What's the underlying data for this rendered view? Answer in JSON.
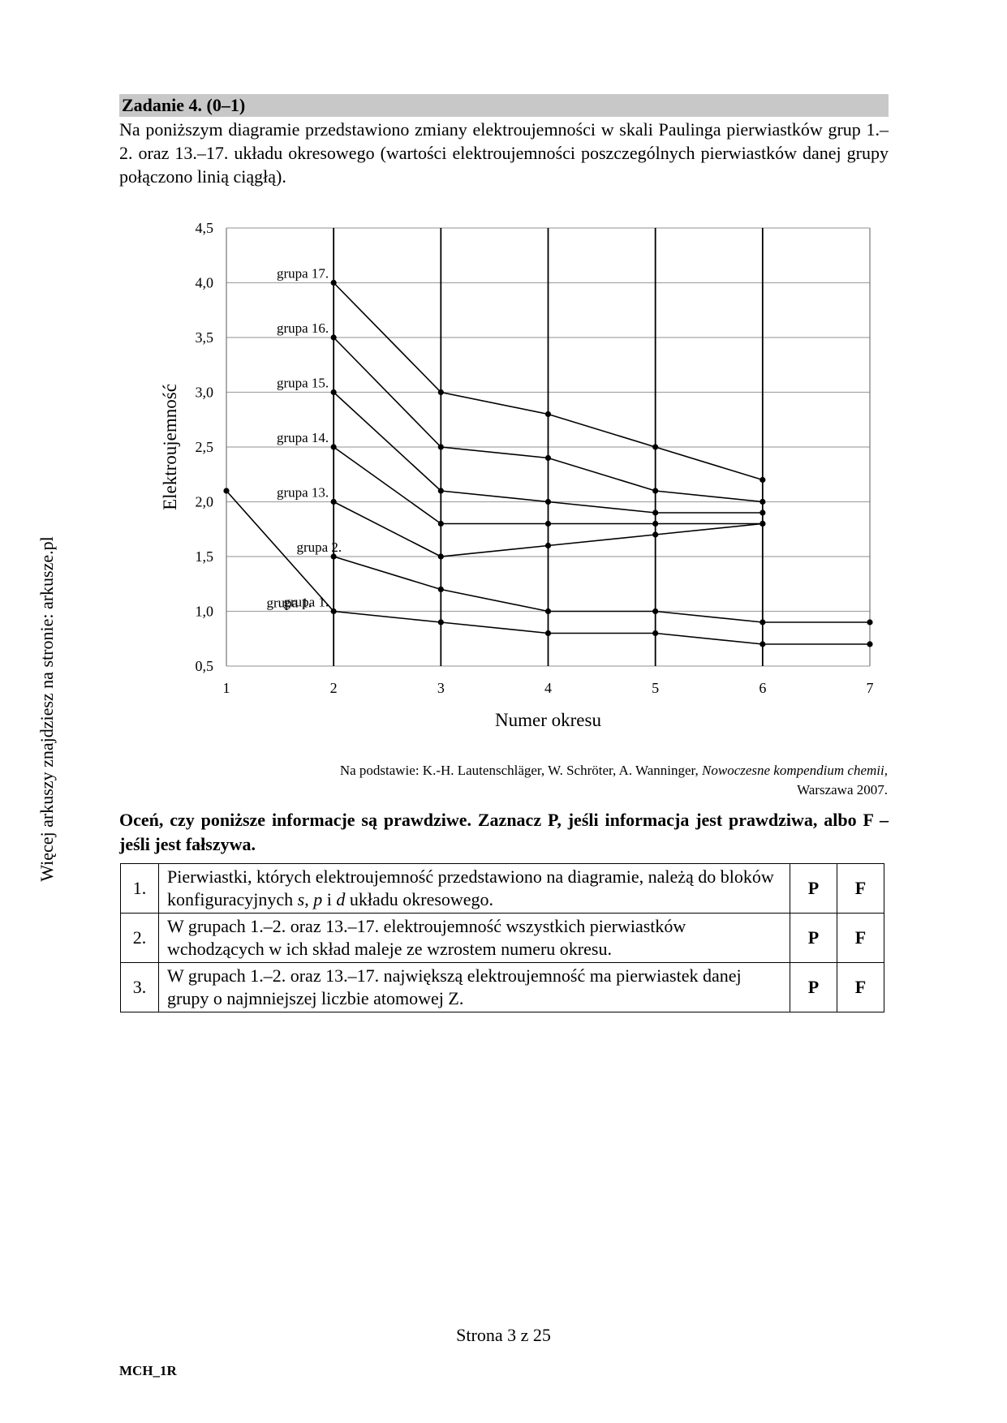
{
  "side_text": "Więcej arkuszy znajdziesz na stronie: arkusze.pl",
  "task": {
    "title": "Zadanie 4. (0–1)",
    "intro": "Na poniższym diagramie przedstawiono zmiany elektroujemności w skali Paulinga pierwiastków grup 1.–2. oraz 13.–17. układu okresowego (wartości elektroujemności poszczególnych pierwiastków danej grupy połączono linią ciągłą)."
  },
  "chart_data": {
    "type": "line",
    "xlabel": "Numer okresu",
    "ylabel": "Elektroujemność",
    "xlim": [
      1,
      7
    ],
    "ylim": [
      0.5,
      4.5
    ],
    "x_ticks": [
      "1",
      "2",
      "3",
      "4",
      "5",
      "6",
      "7"
    ],
    "y_ticks": [
      "0,5",
      "1,0",
      "1,5",
      "2,0",
      "2,5",
      "3,0",
      "3,5",
      "4,0",
      "4,5"
    ],
    "grid": "horizontal lines and vertical lines at periods 2–7",
    "series": [
      {
        "name": "grupa 1.",
        "x": [
          1,
          2,
          3,
          4,
          5,
          6,
          7
        ],
        "y": [
          2.1,
          1.0,
          0.9,
          0.8,
          0.8,
          0.7,
          0.7
        ]
      },
      {
        "name": "grupa 2.",
        "x": [
          2,
          3,
          4,
          5,
          6,
          7
        ],
        "y": [
          1.5,
          1.2,
          1.0,
          1.0,
          0.9,
          0.9
        ]
      },
      {
        "name": "grupa 13.",
        "x": [
          2,
          3,
          4,
          5,
          6
        ],
        "y": [
          2.0,
          1.5,
          1.6,
          1.7,
          1.8
        ]
      },
      {
        "name": "grupa 14.",
        "x": [
          2,
          3,
          4,
          5,
          6
        ],
        "y": [
          2.5,
          1.8,
          1.8,
          1.8,
          1.8
        ]
      },
      {
        "name": "grupa 15.",
        "x": [
          2,
          3,
          4,
          5,
          6
        ],
        "y": [
          3.0,
          2.1,
          2.0,
          1.9,
          1.9
        ]
      },
      {
        "name": "grupa 16.",
        "x": [
          2,
          3,
          4,
          5,
          6
        ],
        "y": [
          3.5,
          2.5,
          2.4,
          2.1,
          2.0
        ]
      },
      {
        "name": "grupa 17.",
        "x": [
          2,
          3,
          4,
          5,
          6
        ],
        "y": [
          4.0,
          3.0,
          2.8,
          2.5,
          2.2
        ]
      }
    ]
  },
  "source": {
    "prefix": "Na podstawie: K.-H. Lautenschläger, W. Schröter, A. Wanninger, ",
    "title": "Nowoczesne kompendium chemii,",
    "place": "Warszawa 2007."
  },
  "question": "Oceń, czy poniższe informacje są prawdziwe. Zaznacz P, jeśli informacja jest prawdziwa, albo F – jeśli jest fałszywa.",
  "statements": [
    {
      "num": "1.",
      "p": "P",
      "f": "F",
      "parts": {
        "a": "Pierwiastki, których elektroujemność przedstawiono na diagramie, należą do bloków konfiguracyjnych ",
        "s": "s",
        "c1": ", ",
        "p_block": "p",
        "c2": " i ",
        "d": "d",
        "end": " układu okresowego."
      }
    },
    {
      "num": "2.",
      "text": "W grupach 1.–2. oraz 13.–17. elektroujemność wszystkich pierwiastków wchodzących w ich skład maleje ze wzrostem numeru okresu.",
      "p": "P",
      "f": "F"
    },
    {
      "num": "3.",
      "text": "W grupach 1.–2. oraz 13.–17. największą elektroujemność ma pierwiastek danej grupy o najmniejszej liczbie atomowej Z.",
      "p": "P",
      "f": "F"
    }
  ],
  "footer": {
    "page": "Strona 3 z 25",
    "code": "MCH_1R"
  }
}
